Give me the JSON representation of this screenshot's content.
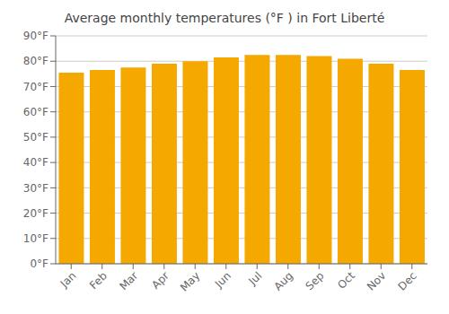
{
  "chart_data": {
    "type": "bar",
    "title": "Average monthly temperatures (°F ) in Fort Liberté",
    "categories": [
      "Jan",
      "Feb",
      "Mar",
      "Apr",
      "May",
      "Jun",
      "Jul",
      "Aug",
      "Sep",
      "Oct",
      "Nov",
      "Dec"
    ],
    "values": [
      75.5,
      76.5,
      77.5,
      79.0,
      80.0,
      81.5,
      82.5,
      82.5,
      82.0,
      81.0,
      79.0,
      76.5
    ],
    "color": "#F5A800",
    "ylim": [
      0,
      90
    ],
    "yticks": [
      {
        "value": 0,
        "label": "0°F"
      },
      {
        "value": 10,
        "label": "10°F"
      },
      {
        "value": 20,
        "label": "20°F"
      },
      {
        "value": 30,
        "label": "30°F"
      },
      {
        "value": 40,
        "label": "40°F"
      },
      {
        "value": 50,
        "label": "50°F"
      },
      {
        "value": 60,
        "label": "60°F"
      },
      {
        "value": 70,
        "label": "70°F"
      },
      {
        "value": 80,
        "label": "80°F"
      },
      {
        "value": 90,
        "label": "90°F"
      }
    ],
    "grid": true
  }
}
